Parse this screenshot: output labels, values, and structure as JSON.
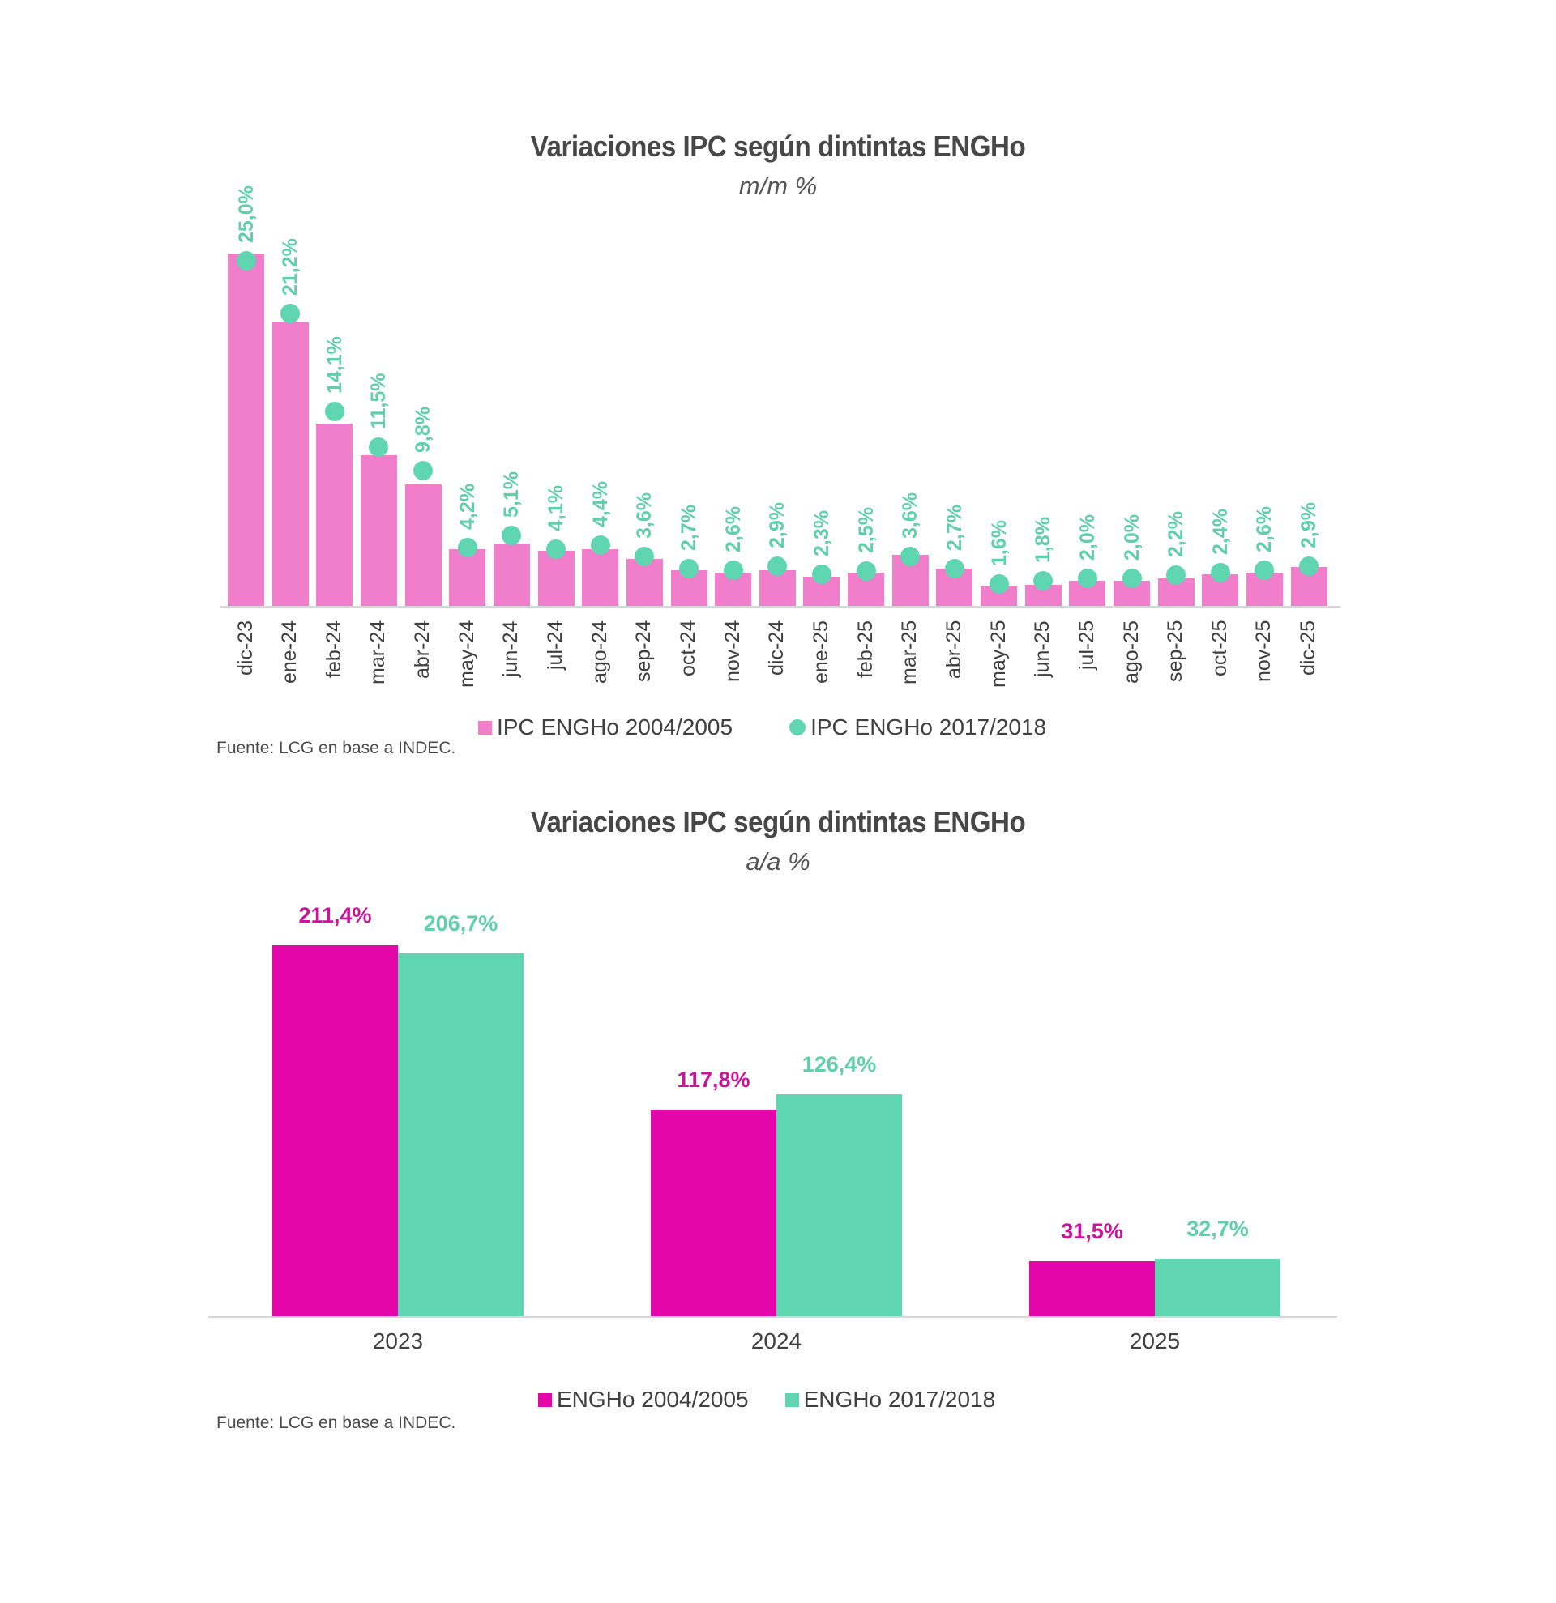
{
  "colors": {
    "pink_bar": "#f07ecb",
    "teal": "#5fd6b0",
    "magenta": "#e406a9",
    "magenta_label": "#c8159a",
    "teal_label": "#5fd0a9",
    "text": "#404040",
    "axis": "#d6d6d6"
  },
  "chart1": {
    "title": "Variaciones IPC según dintintas ENGHo",
    "subtitle": "m/m %",
    "legend": [
      {
        "label": "IPC ENGHo 2004/2005",
        "marker": "square"
      },
      {
        "label": "IPC ENGHo 2017/2018",
        "marker": "circle"
      }
    ],
    "source": "Fuente: LCG en base a INDEC."
  },
  "chart2": {
    "title": "Variaciones IPC según dintintas ENGHo",
    "subtitle": "a/a %",
    "legend": [
      {
        "label": "ENGHo 2004/2005"
      },
      {
        "label": "ENGHo 2017/2018"
      }
    ],
    "source": "Fuente: LCG en base a INDEC."
  },
  "chart_data": [
    {
      "type": "bar",
      "title": "Variaciones IPC según dintintas ENGHo",
      "subtitle": "m/m %",
      "xlabel": "",
      "ylabel": "",
      "grid": false,
      "legend_position": "bottom",
      "categories": [
        "dic-23",
        "ene-24",
        "feb-24",
        "mar-24",
        "abr-24",
        "may-24",
        "jun-24",
        "jul-24",
        "ago-24",
        "sep-24",
        "oct-24",
        "nov-24",
        "dic-24",
        "ene-25",
        "feb-25",
        "mar-25",
        "abr-25",
        "may-25",
        "jun-25",
        "jul-25",
        "ago-25",
        "sep-25",
        "oct-25",
        "nov-25",
        "dic-25"
      ],
      "series": [
        {
          "name": "IPC ENGHo 2004/2005",
          "kind": "bar",
          "color": "#f07ecb",
          "labeled": false,
          "values": [
            25.5,
            20.6,
            13.2,
            10.9,
            8.8,
            4.1,
            4.5,
            4.0,
            4.1,
            3.4,
            2.6,
            2.4,
            2.6,
            2.1,
            2.4,
            3.7,
            2.7,
            1.4,
            1.5,
            1.8,
            1.8,
            2.0,
            2.3,
            2.4,
            2.8
          ]
        },
        {
          "name": "IPC ENGHo 2017/2018",
          "kind": "dot",
          "color": "#5fd6b0",
          "labeled": true,
          "values": [
            25.0,
            21.2,
            14.1,
            11.5,
            9.8,
            4.2,
            5.1,
            4.1,
            4.4,
            3.6,
            2.7,
            2.6,
            2.9,
            2.3,
            2.5,
            3.6,
            2.7,
            1.6,
            1.8,
            2.0,
            2.0,
            2.2,
            2.4,
            2.6,
            2.9
          ],
          "labels": [
            "25,0%",
            "21,2%",
            "14,1%",
            "11,5%",
            "9,8%",
            "4,2%",
            "5,1%",
            "4,1%",
            "4,4%",
            "3,6%",
            "2,7%",
            "2,6%",
            "2,9%",
            "2,3%",
            "2,5%",
            "3,6%",
            "2,7%",
            "1,6%",
            "1,8%",
            "2,0%",
            "2,0%",
            "2,2%",
            "2,4%",
            "2,6%",
            "2,9%"
          ]
        }
      ],
      "ylim": [
        0,
        27
      ],
      "source": "Fuente: LCG en base a INDEC."
    },
    {
      "type": "bar",
      "title": "Variaciones IPC según dintintas ENGHo",
      "subtitle": "a/a %",
      "xlabel": "",
      "ylabel": "",
      "grid": false,
      "legend_position": "bottom",
      "categories": [
        "2023",
        "2024",
        "2025"
      ],
      "series": [
        {
          "name": "ENGHo 2004/2005",
          "color": "#e406a9",
          "values": [
            211.4,
            117.8,
            31.5
          ],
          "labels": [
            "211,4%",
            "117,8%",
            "31,5%"
          ]
        },
        {
          "name": "ENGHo 2017/2018",
          "color": "#5fd6b0",
          "values": [
            206.7,
            126.4,
            32.7
          ],
          "labels": [
            "206,7%",
            "126,4%",
            "32,7%"
          ]
        }
      ],
      "ylim": [
        0,
        230
      ],
      "source": "Fuente: LCG en base a INDEC."
    }
  ]
}
